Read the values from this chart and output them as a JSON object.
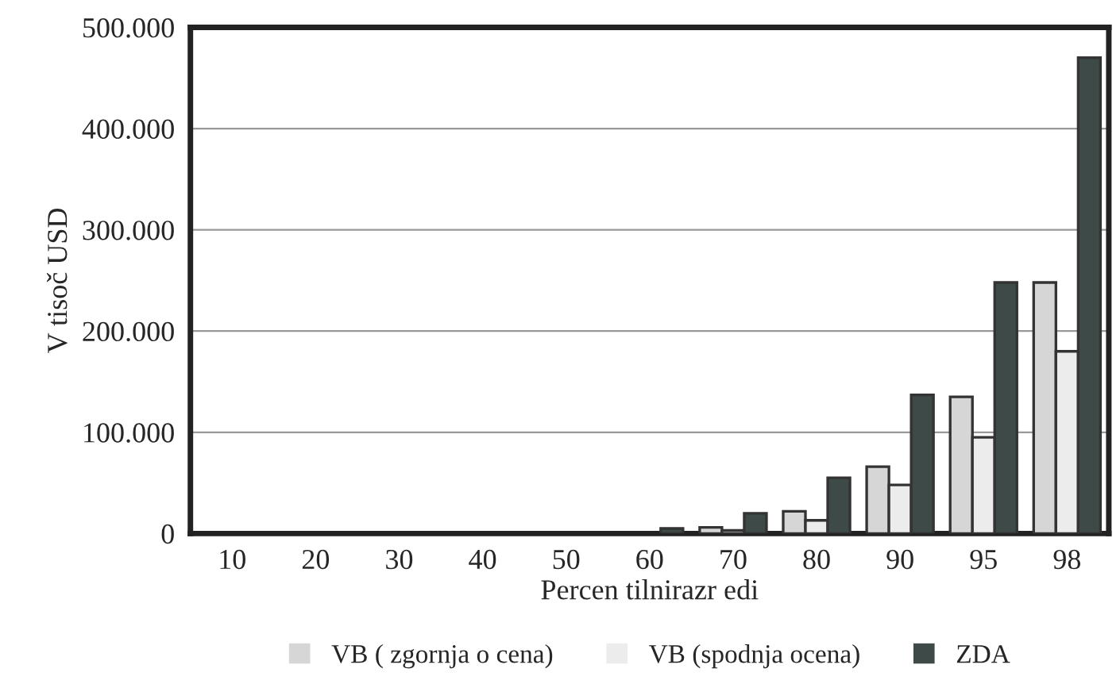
{
  "chart_data": {
    "type": "bar",
    "xlabel": "Percen tilnirazr edi",
    "ylabel": "V tisoč USD",
    "categories": [
      "10",
      "20",
      "30",
      "40",
      "50",
      "60",
      "70",
      "80",
      "90",
      "95",
      "98"
    ],
    "series": [
      {
        "name": "VB ( zgornja o cena)",
        "color": "#d6d6d6",
        "values": [
          null,
          null,
          null,
          null,
          null,
          null,
          6000,
          22000,
          66000,
          135000,
          248000
        ]
      },
      {
        "name": "VB (spodnja ocena)",
        "color": "#ececec",
        "values": [
          null,
          null,
          null,
          null,
          null,
          null,
          3000,
          13000,
          48000,
          95000,
          180000
        ]
      },
      {
        "name": "ZDA",
        "color": "#3e4a48",
        "values": [
          null,
          null,
          null,
          null,
          null,
          5000,
          20000,
          55000,
          137000,
          248000,
          470000
        ]
      }
    ],
    "ylim": [
      0,
      500000
    ],
    "yticks": [
      {
        "value": 0,
        "label": "0"
      },
      {
        "value": 100000,
        "label": "100.000"
      },
      {
        "value": 200000,
        "label": "200.000"
      },
      {
        "value": 300000,
        "label": "300.000"
      },
      {
        "value": 400000,
        "label": "400.000"
      },
      {
        "value": 500000,
        "label": "500.000"
      }
    ],
    "grid": "y",
    "legend": "bottom"
  }
}
